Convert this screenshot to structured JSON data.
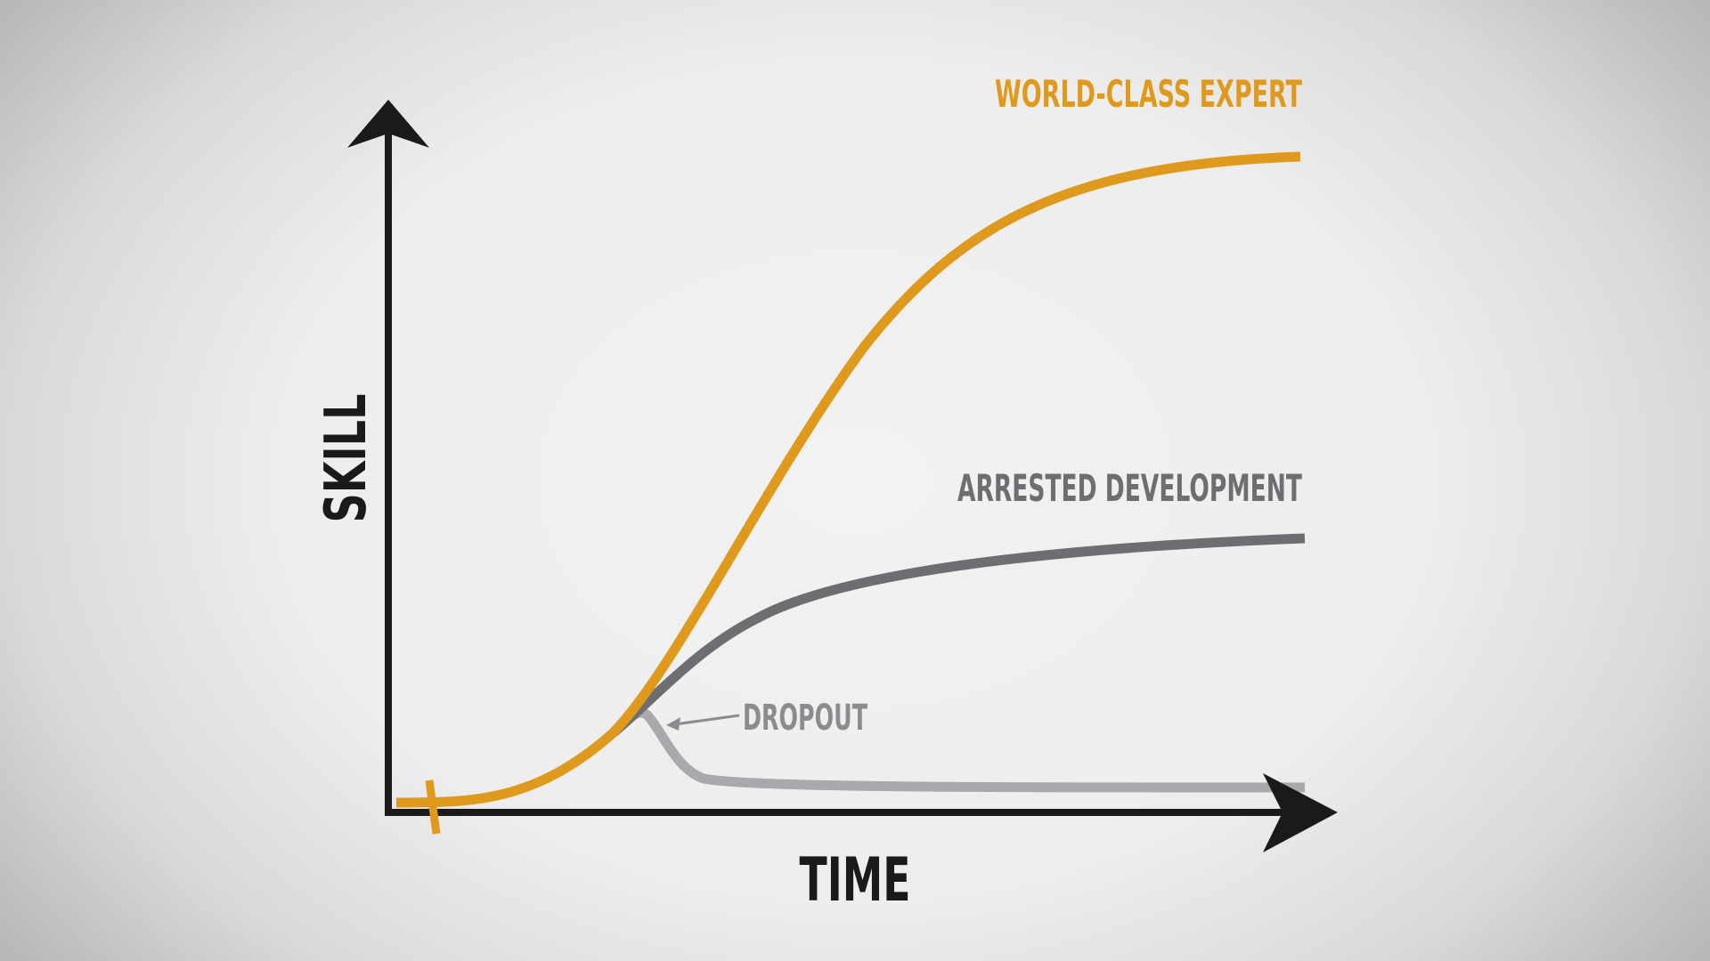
{
  "axes": {
    "y_label": "SKILL",
    "x_label": "TIME"
  },
  "curves": [
    {
      "id": "expert",
      "label": "WORLD-CLASS EXPERT",
      "color": "#df9a1e"
    },
    {
      "id": "arrested",
      "label": "ARRESTED DEVELOPMENT",
      "color": "#6d6e71"
    },
    {
      "id": "dropout",
      "label": "DROPOUT",
      "color": "#a7a9ac"
    }
  ],
  "colors": {
    "axis": "#1a1a1a",
    "start_marker": "#df9a1e"
  }
}
